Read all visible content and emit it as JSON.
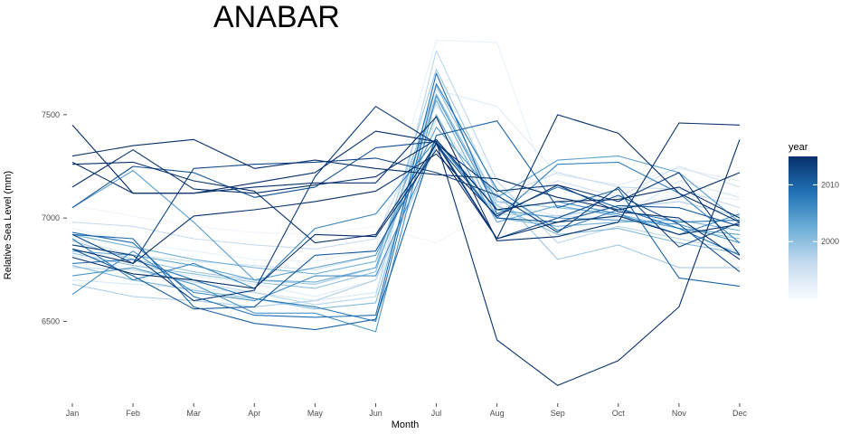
{
  "chart_data": {
    "type": "line",
    "title": "ANABAR",
    "xlabel": "Month",
    "ylabel": "Relative Sea Level (mm)",
    "categories": [
      "Jan",
      "Feb",
      "Mar",
      "Apr",
      "May",
      "Jun",
      "Jul",
      "Aug",
      "Sep",
      "Oct",
      "Nov",
      "Dec"
    ],
    "y_ticks": [
      6500,
      7000,
      7500
    ],
    "ylim": [
      6130,
      7880
    ],
    "grid": false,
    "legend": {
      "title": "year",
      "position": "right",
      "type": "colorbar",
      "ticks": [
        2000,
        2010
      ],
      "range": [
        1990,
        2015
      ],
      "color_low": "#f7fbff",
      "color_high": "#08306b"
    },
    "series": [
      {
        "year": 1991,
        "values": [
          7060,
          7010,
          6960,
          6930,
          6920,
          6960,
          6880,
          7050,
          7090,
          7100,
          7110,
          7120
        ]
      },
      {
        "year": 1992,
        "values": [
          6950,
          6880,
          6840,
          6800,
          6790,
          6850,
          7860,
          7850,
          7010,
          7060,
          7110,
          7090
        ]
      },
      {
        "year": 1993,
        "values": [
          6820,
          6750,
          6720,
          6680,
          6620,
          6700,
          7620,
          7540,
          7210,
          7160,
          7240,
          7180
        ]
      },
      {
        "year": 1994,
        "values": [
          6700,
          6680,
          6660,
          6640,
          6600,
          6640,
          7480,
          7080,
          7010,
          7000,
          7180,
          7100
        ]
      },
      {
        "year": 1995,
        "values": [
          6900,
          6820,
          6790,
          6770,
          6750,
          6820,
          7380,
          7060,
          7180,
          7100,
          7250,
          7150
        ]
      },
      {
        "year": 1996,
        "values": [
          6980,
          6960,
          6900,
          6870,
          6850,
          6900,
          7550,
          7100,
          7220,
          7150,
          7140,
          7050
        ]
      },
      {
        "year": 1997,
        "values": [
          6760,
          6750,
          6690,
          6640,
          6580,
          6620,
          7810,
          7180,
          6880,
          6960,
          6900,
          6840
        ]
      },
      {
        "year": 1998,
        "values": [
          6680,
          6620,
          6600,
          6570,
          6600,
          6700,
          7350,
          7020,
          7010,
          7050,
          7080,
          7010
        ]
      },
      {
        "year": 1999,
        "values": [
          6890,
          6800,
          6740,
          6700,
          6680,
          6760,
          7720,
          7120,
          6800,
          6870,
          6760,
          6760
        ]
      },
      {
        "year": 2000,
        "values": [
          6830,
          6770,
          6730,
          6690,
          6660,
          6740,
          7640,
          7080,
          7050,
          7020,
          6950,
          6900
        ]
      },
      {
        "year": 2001,
        "values": [
          6770,
          6700,
          6650,
          6610,
          6560,
          6590,
          7600,
          7060,
          6920,
          6950,
          6880,
          6830
        ]
      },
      {
        "year": 2002,
        "values": [
          6920,
          6860,
          6800,
          6760,
          6730,
          6790,
          7570,
          7000,
          6960,
          6980,
          6990,
          6940
        ]
      },
      {
        "year": 2003,
        "values": [
          6840,
          6820,
          6770,
          6700,
          6690,
          6760,
          7500,
          6980,
          7060,
          7010,
          6950,
          6920
        ]
      },
      {
        "year": 2004,
        "values": [
          7050,
          7230,
          6980,
          6700,
          6760,
          6820,
          7440,
          7100,
          7280,
          7300,
          7220,
          6980
        ]
      },
      {
        "year": 2005,
        "values": [
          6720,
          6760,
          6680,
          6540,
          6540,
          6450,
          7590,
          7040,
          7000,
          6990,
          6970,
          6880
        ]
      },
      {
        "year": 2006,
        "values": [
          6630,
          6840,
          6640,
          6600,
          6720,
          6720,
          7370,
          7040,
          7080,
          7020,
          6920,
          7020
        ]
      },
      {
        "year": 2007,
        "values": [
          6900,
          6700,
          6780,
          6660,
          6950,
          7020,
          7380,
          7000,
          7260,
          7270,
          7120,
          6880
        ]
      },
      {
        "year": 2008,
        "values": [
          6780,
          6800,
          6700,
          6610,
          6570,
          6500,
          7650,
          7140,
          6940,
          7040,
          6980,
          6990
        ]
      },
      {
        "year": 2009,
        "values": [
          6930,
          6880,
          6620,
          6530,
          6520,
          6530,
          7700,
          7020,
          7150,
          7050,
          6950,
          6820
        ]
      },
      {
        "year": 2010,
        "values": [
          6920,
          6900,
          6570,
          6490,
          6460,
          6510,
          7400,
          7470,
          7050,
          7140,
          6710,
          6670
        ]
      },
      {
        "year": 2011,
        "values": [
          6850,
          6720,
          6560,
          6570,
          6820,
          6840,
          7360,
          7000,
          6980,
          7060,
          7050,
          6960
        ]
      },
      {
        "year": 2012,
        "values": [
          7050,
          7250,
          7220,
          7100,
          7150,
          7340,
          7370,
          6900,
          7000,
          7110,
          6970,
          6740
        ]
      },
      {
        "year": 2013,
        "values": [
          6920,
          6780,
          7240,
          7260,
          7270,
          7290,
          7220,
          7110,
          6930,
          7150,
          6860,
          6980
        ]
      },
      {
        "year": 2014,
        "values": [
          6870,
          6820,
          6600,
          6650,
          7200,
          7540,
          7360,
          7130,
          7160,
          7080,
          7220,
          6820
        ]
      },
      {
        "year": 2015,
        "values": [
          6810,
          6730,
          6700,
          6660,
          6920,
          6910,
          7330,
          6900,
          6980,
          7010,
          6920,
          6970
        ]
      },
      {
        "year": 2016,
        "values": [
          7150,
          7330,
          7140,
          7120,
          7160,
          7200,
          7380,
          7040,
          7080,
          7090,
          7150,
          7000
        ]
      },
      {
        "year": 2017,
        "values": [
          6850,
          6780,
          7010,
          7040,
          7080,
          7130,
          7310,
          7010,
          7160,
          7030,
          7000,
          6800
        ]
      },
      {
        "year": 2018,
        "values": [
          7260,
          7270,
          7180,
          7130,
          6880,
          6920,
          7360,
          6900,
          7500,
          7410,
          7120,
          6980
        ]
      },
      {
        "year": 2019,
        "values": [
          7270,
          7120,
          7120,
          7170,
          7220,
          7420,
          7370,
          6410,
          6190,
          6310,
          6570,
          7380
        ]
      },
      {
        "year": 2020,
        "values": [
          7300,
          7350,
          7380,
          7240,
          7280,
          7240,
          7210,
          7190,
          7100,
          7040,
          7100,
          7220
        ]
      },
      {
        "year": 2021,
        "values": [
          7450,
          7120,
          7120,
          7150,
          7170,
          7170,
          7490,
          6890,
          6910,
          6980,
          7460,
          7450
        ]
      }
    ]
  }
}
